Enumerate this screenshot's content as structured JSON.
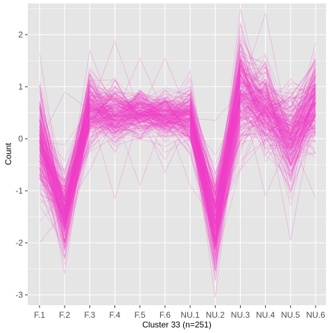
{
  "chart_data": {
    "type": "line",
    "title": "",
    "xlabel": "Cluster 33 (n=251)",
    "ylabel": "Count",
    "categories": [
      "F.1",
      "F.2",
      "F.3",
      "F.4",
      "F.5",
      "F.6",
      "NU.1",
      "NU.2",
      "NU.3",
      "NU.4",
      "NU.5",
      "NU.6"
    ],
    "ylim": [
      -3.2,
      2.6
    ],
    "yticks": [
      -3,
      -2,
      -1,
      0,
      1,
      2
    ],
    "grid": true,
    "legend": "none",
    "n_lines": 251,
    "line_color": "#F03FC8",
    "panel_color": "#E5E5E5",
    "grid_color": "#FFFFFF",
    "profile": {
      "mean": [
        -0.05,
        -1.4,
        0.55,
        0.45,
        0.5,
        0.45,
        0.4,
        -1.6,
        0.9,
        0.55,
        0.0,
        0.7
      ],
      "spread": [
        0.55,
        0.45,
        0.35,
        0.3,
        0.25,
        0.25,
        0.3,
        0.5,
        0.55,
        0.45,
        0.5,
        0.45
      ],
      "min": [
        -2.0,
        -2.6,
        -0.6,
        -1.15,
        -0.9,
        -0.65,
        -0.9,
        -3.05,
        -0.6,
        -1.1,
        -1.95,
        -1.15
      ],
      "max": [
        1.65,
        0.9,
        1.7,
        1.88,
        1.55,
        1.55,
        1.3,
        0.35,
        2.5,
        2.42,
        1.15,
        1.85
      ]
    }
  }
}
